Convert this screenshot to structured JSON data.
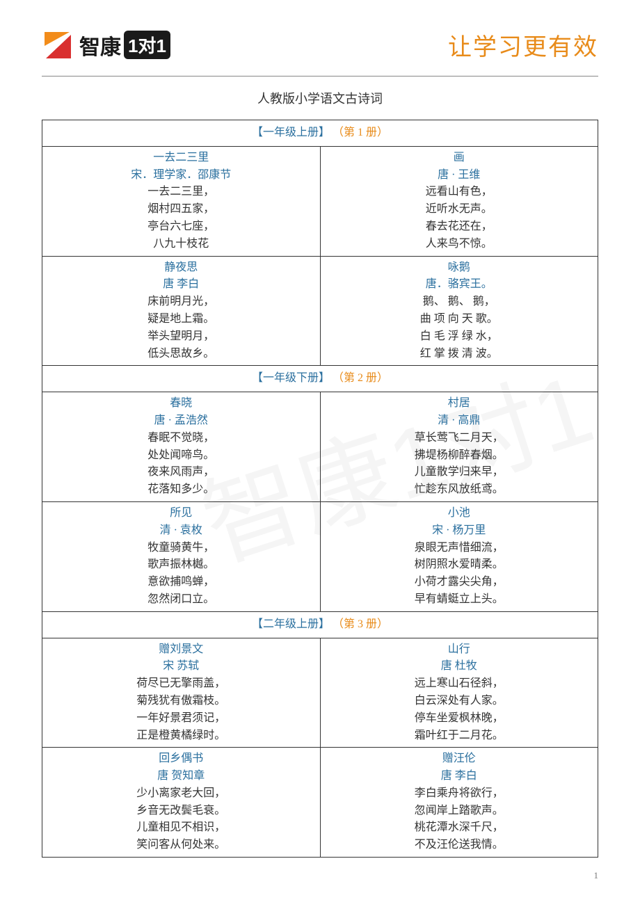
{
  "brand": {
    "name": "智康",
    "badge": "1对1"
  },
  "tagline": "让学习更有效",
  "doc_title": "人教版小学语文古诗词",
  "page_number": "1",
  "colors": {
    "accent_orange": "#e88b1a",
    "title_blue": "#2a6f9e",
    "border": "#333333",
    "text": "#333333"
  },
  "sections": [
    {
      "header": {
        "bracket": "【一年级上册】",
        "vol": "（第 1 册）"
      },
      "rows": [
        [
          {
            "title": "一去二三里",
            "author": "宋．理学家．邵康节",
            "lines": [
              "一去二三里，",
              "烟村四五家，",
              "亭台六七座，",
              "八九十枝花"
            ]
          },
          {
            "title": "画",
            "author": "唐 · 王维",
            "lines": [
              "远看山有色，",
              "近听水无声。",
              "春去花还在，",
              "人来鸟不惊。"
            ]
          }
        ],
        [
          {
            "title": "静夜思",
            "author": "唐  李白",
            "lines": [
              "床前明月光，",
              "疑是地上霜。",
              "举头望明月，",
              "低头思故乡。"
            ]
          },
          {
            "title": "咏鹅",
            "author": "唐．骆宾王。",
            "lines": [
              "鹅、 鹅、 鹅，",
              "曲 项 向 天 歌。",
              "白 毛 浮 绿 水，",
              "红 掌 拨 清 波。"
            ]
          }
        ]
      ]
    },
    {
      "header": {
        "bracket": "【一年级下册】",
        "vol": "（第 2 册）"
      },
      "rows": [
        [
          {
            "title": "春晓",
            "author": "唐 · 孟浩然",
            "lines": [
              "春眠不觉晓，",
              "处处闻啼鸟。",
              "夜来风雨声，",
              "花落知多少。"
            ]
          },
          {
            "title": "村居",
            "author": "清 · 高鼎",
            "lines": [
              "草长莺飞二月天，",
              "拂堤杨柳醉春烟。",
              "儿童散学归来早，",
              "忙趁东风放纸鸢。"
            ]
          }
        ],
        [
          {
            "title": "所见",
            "author": "清 · 袁枚",
            "lines": [
              "牧童骑黄牛，",
              "歌声振林樾。",
              "意欲捕鸣蝉，",
              "忽然闭口立。"
            ]
          },
          {
            "title": "小池",
            "author": "宋 · 杨万里",
            "lines": [
              "泉眼无声惜细流，",
              "树阴照水爱晴柔。",
              "小荷才露尖尖角，",
              "早有蜻蜓立上头。"
            ]
          }
        ]
      ]
    },
    {
      "header": {
        "bracket": "【二年级上册】",
        "vol": "（第 3 册）"
      },
      "rows": [
        [
          {
            "title": "赠刘景文",
            "author": "宋  苏轼",
            "lines": [
              "荷尽已无擎雨盖，",
              "菊残犹有傲霜枝。",
              "一年好景君须记，",
              "正是橙黄橘绿时。"
            ]
          },
          {
            "title": "山行",
            "author": "唐  杜牧",
            "lines": [
              "远上寒山石径斜，",
              "白云深处有人家。",
              "停车坐爱枫林晚，",
              "霜叶红于二月花。"
            ]
          }
        ],
        [
          {
            "title": "回乡偶书",
            "author": "唐  贺知章",
            "lines": [
              "少小离家老大回，",
              "乡音无改鬓毛衰。",
              "儿童相见不相识，",
              "笑问客从何处来。"
            ]
          },
          {
            "title": "赠汪伦",
            "author": "唐  李白",
            "lines": [
              "李白乘舟将欲行，",
              "忽闻岸上踏歌声。",
              "桃花潭水深千尺，",
              "不及汪伦送我情。"
            ]
          }
        ]
      ]
    }
  ]
}
